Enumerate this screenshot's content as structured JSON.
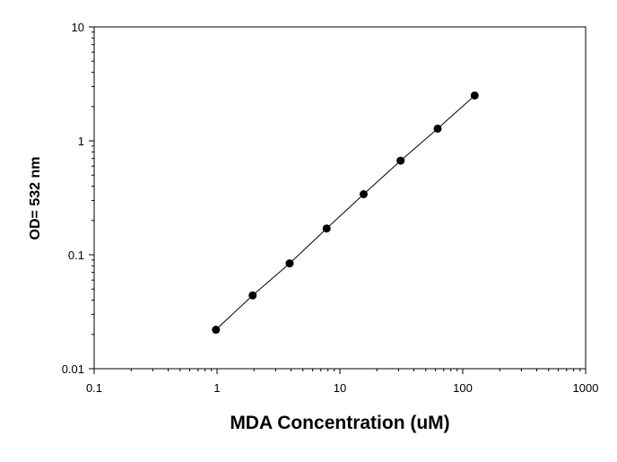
{
  "chart_data": {
    "type": "scatter",
    "title": "",
    "xlabel": "MDA Concentration (uM)",
    "ylabel": "OD= 532 nm",
    "x_scale": "log",
    "y_scale": "log",
    "xlim": [
      0.1,
      1000
    ],
    "ylim": [
      0.01,
      10
    ],
    "x_ticks": [
      0.1,
      1,
      10,
      100,
      1000
    ],
    "x_tick_labels": [
      "0.1",
      "1",
      "10",
      "100",
      "1000"
    ],
    "y_ticks": [
      0.01,
      0.1,
      1,
      10
    ],
    "y_tick_labels": [
      "0.01",
      "0.1",
      "1",
      "10"
    ],
    "grid": false,
    "connect_points": true,
    "marker_color": "#000000",
    "line_color": "#000000",
    "series": [
      {
        "x": [
          0.98,
          1.95,
          3.9,
          7.8,
          15.6,
          31.2,
          62.5,
          125
        ],
        "y": [
          0.022,
          0.044,
          0.084,
          0.17,
          0.34,
          0.67,
          1.28,
          2.5
        ]
      }
    ]
  }
}
